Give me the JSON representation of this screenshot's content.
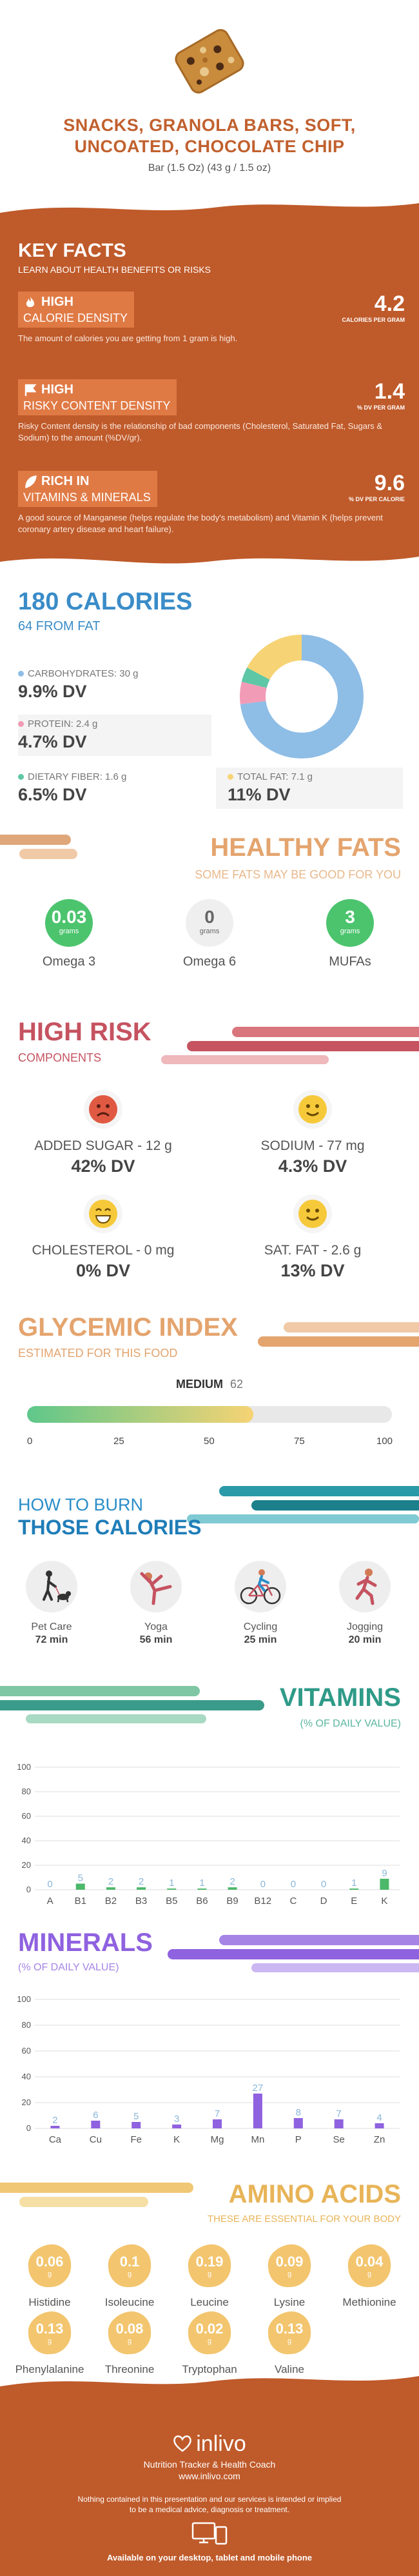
{
  "header": {
    "title_line1": "SNACKS, GRANOLA BARS, SOFT,",
    "title_line2": "UNCOATED, CHOCOLATE CHIP",
    "serving": "Bar (1.5 Oz) (43 g / 1.5 oz)"
  },
  "key_facts": {
    "title": "KEY FACTS",
    "subtitle": "LEARN ABOUT HEALTH BENEFITS OR RISKS",
    "items": [
      {
        "level": "HIGH",
        "label": "CALORIE DENSITY",
        "value": "4.2",
        "unit": "CALORIES PER GRAM",
        "desc": "The amount of calories you are getting from 1 gram is high."
      },
      {
        "level": "HIGH",
        "label": "RISKY CONTENT DENSITY",
        "value": "1.4",
        "unit": "% DV PER GRAM",
        "desc": "Risky Content density is the relationship of bad components (Cholesterol, Saturated Fat, Sugars & Sodium) to the amount (%DV/gr)."
      },
      {
        "level": "RICH  IN",
        "label": "VITAMINS & MINERALS",
        "value": "9.6",
        "unit": "% DV PER CALORIE",
        "desc": "A good source of Manganese (helps regulate the body's metabolism) and Vitamin K (helps prevent coronary artery disease and heart failure)."
      }
    ]
  },
  "calories": {
    "title": "180 CALORIES",
    "from_fat": "64 FROM FAT",
    "macros": [
      {
        "label": "CARBOHYDRATES: 30 g",
        "dv": "9.9% DV",
        "color": "#8ebde6"
      },
      {
        "label": "PROTEIN: 2.4 g",
        "dv": "4.7% DV",
        "color": "#f29bb6"
      },
      {
        "label": "DIETARY FIBER: 1.6 g",
        "dv": "6.5% DV",
        "color": "#5ec7a6"
      },
      {
        "label": "TOTAL FAT: 7.1 g",
        "dv": "11% DV",
        "color": "#f6d374"
      }
    ],
    "donut_grams": [
      30,
      2.4,
      1.6,
      7.1
    ]
  },
  "healthy_fats": {
    "title": "HEALTHY FATS",
    "subtitle": "SOME FATS MAY BE GOOD FOR YOU",
    "unit": "grams",
    "items": [
      {
        "value": "0.03",
        "name": "Omega 3",
        "color": "#4cc46e"
      },
      {
        "value": "0",
        "name": "Omega 6",
        "color": "#e8e8e8"
      },
      {
        "value": "3",
        "name": "MUFAs",
        "color": "#4cc46e"
      }
    ]
  },
  "high_risk": {
    "title": "HIGH RISK",
    "subtitle": "COMPONENTS",
    "items": [
      {
        "label": "ADDED SUGAR - 12 g",
        "dv": "42% DV",
        "mood": "sad"
      },
      {
        "label": "SODIUM - 77 mg",
        "dv": "4.3% DV",
        "mood": "smile"
      },
      {
        "label": "CHOLESTEROL - 0 mg",
        "dv": "0% DV",
        "mood": "grin"
      },
      {
        "label": "SAT. FAT - 2.6 g",
        "dv": "13% DV",
        "mood": "smile"
      }
    ]
  },
  "glycemic": {
    "title": "GLYCEMIC INDEX",
    "subtitle": "ESTIMATED FOR THIS FOOD",
    "level": "MEDIUM",
    "value": "62",
    "value_num": 62,
    "ticks": [
      "0",
      "25",
      "50",
      "75",
      "100"
    ]
  },
  "burn": {
    "title_line1": "HOW TO BURN",
    "title_line2": "THOSE CALORIES",
    "activities": [
      {
        "name": "Pet Care",
        "time": "72 min",
        "icon": "dog-walking-icon"
      },
      {
        "name": "Yoga",
        "time": "56 min",
        "icon": "yoga-icon"
      },
      {
        "name": "Cycling",
        "time": "25 min",
        "icon": "cycling-icon"
      },
      {
        "name": "Jogging",
        "time": "20 min",
        "icon": "jogging-icon"
      }
    ]
  },
  "vitamins": {
    "title": "VITAMINS",
    "subtitle": "(% OF DAILY VALUE)"
  },
  "minerals": {
    "title": "MINERALS",
    "subtitle": "(% OF DAILY VALUE)"
  },
  "amino": {
    "title": "AMINO ACIDS",
    "subtitle": "THESE ARE ESSENTIAL FOR YOUR BODY",
    "unit": "g",
    "items": [
      {
        "name": "Histidine",
        "value": "0.06"
      },
      {
        "name": "Isoleucine",
        "value": "0.1"
      },
      {
        "name": "Leucine",
        "value": "0.19"
      },
      {
        "name": "Lysine",
        "value": "0.09"
      },
      {
        "name": "Methionine",
        "value": "0.04"
      },
      {
        "name": "Phenylalanine",
        "value": "0.13"
      },
      {
        "name": "Threonine",
        "value": "0.08"
      },
      {
        "name": "Tryptophan",
        "value": "0.02"
      },
      {
        "name": "Valine",
        "value": "0.13"
      }
    ]
  },
  "footer": {
    "brand": "inlivo",
    "tagline": "Nutrition Tracker & Health Coach",
    "url": "www.inlivo.com",
    "disclaimer_line1": "Nothing contained in this presentation and our services is intended or implied",
    "disclaimer_line2": "to be a medical advice, diagnosis or treatment.",
    "available": "Available on your desktop, tablet and mobile phone"
  },
  "chart_data": [
    {
      "type": "bar",
      "categories": [
        "A",
        "B1",
        "B2",
        "B3",
        "B5",
        "B6",
        "B9",
        "B12",
        "C",
        "D",
        "E",
        "K"
      ],
      "values": [
        0,
        5,
        2,
        2,
        1,
        1,
        2,
        0,
        0,
        0,
        1,
        9
      ],
      "title": "VITAMINS",
      "ylim": [
        0,
        100
      ],
      "yticks": [
        "0",
        "20",
        "40",
        "60",
        "80",
        "100"
      ],
      "color": "#4cb86a",
      "label_color": "#8ab6d8"
    },
    {
      "type": "bar",
      "categories": [
        "Ca",
        "Cu",
        "Fe",
        "K",
        "Mg",
        "Mn",
        "P",
        "Se",
        "Zn"
      ],
      "values": [
        2,
        6,
        5,
        3,
        7,
        27,
        8,
        7,
        4
      ],
      "title": "MINERALS",
      "ylim": [
        0,
        100
      ],
      "yticks": [
        "0",
        "20",
        "40",
        "60",
        "80",
        "100"
      ],
      "color": "#8f62e0",
      "label_color": "#8ab6d8"
    }
  ]
}
